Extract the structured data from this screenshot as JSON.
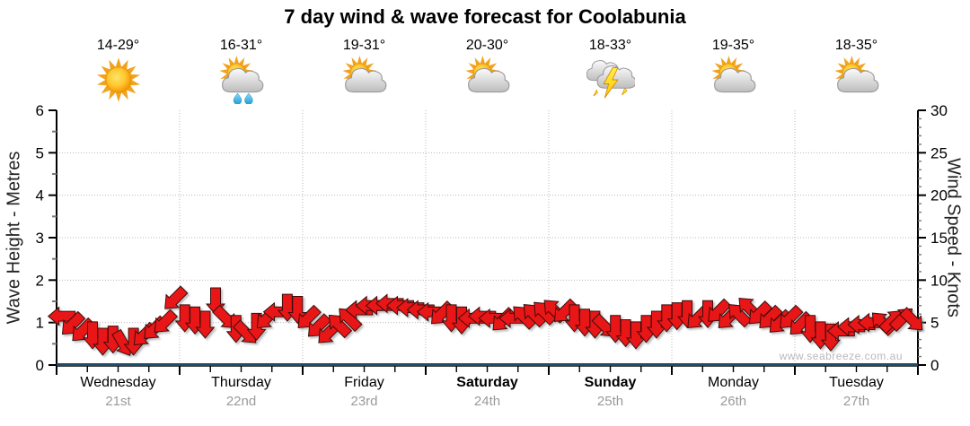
{
  "title": "7 day wind & wave forecast for Coolabunia",
  "watermark": "www.seabreeze.com.au",
  "axes": {
    "left": {
      "title": "Wave Height - Metres",
      "range": [
        0,
        6
      ],
      "major_ticks": [
        0,
        1,
        2,
        3,
        4,
        5,
        6
      ],
      "minor_step": 0.5
    },
    "right": {
      "title": "Wind Speed - Knots",
      "range": [
        0,
        30
      ],
      "major_ticks": [
        0,
        5,
        10,
        15,
        20,
        25,
        30
      ],
      "minor_step": 1
    },
    "bottom": {
      "minor_ticks_per_day": 4
    }
  },
  "colors": {
    "arrow_fill": "#e81414",
    "arrow_stroke": "#3c0d0d",
    "wave_line": "#1f4e6b",
    "grid": "#b8b8b8",
    "axis": "#000000",
    "minor_tick": "#777777"
  },
  "days": [
    {
      "name": "Wednesday",
      "date": "21st",
      "temp": "14-29°",
      "icon": "sunny",
      "weekend": false
    },
    {
      "name": "Thursday",
      "date": "22nd",
      "temp": "16-31°",
      "icon": "sun-cloud-rain",
      "weekend": false
    },
    {
      "name": "Friday",
      "date": "23rd",
      "temp": "19-31°",
      "icon": "sun-cloud",
      "weekend": false
    },
    {
      "name": "Saturday",
      "date": "24th",
      "temp": "20-30°",
      "icon": "sun-cloud",
      "weekend": true
    },
    {
      "name": "Sunday",
      "date": "25th",
      "temp": "18-33°",
      "icon": "thunderstorm",
      "weekend": true
    },
    {
      "name": "Monday",
      "date": "26th",
      "temp": "19-35°",
      "icon": "sun-cloud",
      "weekend": false
    },
    {
      "name": "Tuesday",
      "date": "27th",
      "temp": "18-35°",
      "icon": "sun-cloud",
      "weekend": false
    }
  ],
  "chart_data": {
    "type": "wind-arrows+line",
    "description": "Red arrows = wind speed (right axis, knots) and direction over 7 days, 12 points/day. Teal flat line = wave height 0 m (left axis).",
    "points_per_day": 12,
    "wind_knots": [
      5.75,
      4.75,
      4.0,
      3.5,
      2.75,
      3.0,
      2.5,
      2.75,
      3.5,
      4.25,
      5.0,
      7.75,
      5.5,
      5.25,
      4.75,
      7.5,
      5.5,
      4.25,
      3.75,
      4.5,
      5.5,
      6.25,
      6.75,
      6.5,
      5.5,
      4.5,
      3.75,
      4.75,
      5.5,
      6.5,
      7.0,
      7.0,
      7.25,
      7.0,
      6.75,
      6.5,
      6.25,
      6.0,
      5.5,
      5.25,
      5.5,
      5.75,
      5.5,
      5.25,
      5.5,
      5.75,
      6.0,
      6.25,
      6.5,
      6.25,
      5.5,
      5.0,
      4.75,
      4.5,
      4.25,
      3.75,
      3.5,
      4.25,
      4.75,
      5.5,
      5.75,
      6.0,
      5.5,
      6.0,
      6.25,
      5.5,
      6.0,
      6.75,
      6.0,
      5.5,
      5.0,
      5.5,
      4.75,
      4.25,
      3.5,
      3.25,
      4.0,
      4.5,
      4.75,
      5.0,
      5.0,
      5.25,
      5.5,
      5.25
    ],
    "wind_dir_deg_cw_from_east": [
      180,
      135,
      135,
      90,
      90,
      90,
      60,
      90,
      135,
      135,
      135,
      135,
      90,
      90,
      90,
      90,
      45,
      90,
      45,
      90,
      135,
      180,
      90,
      90,
      135,
      135,
      135,
      225,
      225,
      180,
      180,
      180,
      180,
      180,
      180,
      180,
      180,
      135,
      90,
      90,
      180,
      180,
      180,
      135,
      180,
      225,
      225,
      225,
      225,
      135,
      90,
      90,
      90,
      45,
      90,
      90,
      90,
      90,
      90,
      90,
      90,
      90,
      135,
      90,
      135,
      135,
      225,
      225,
      135,
      135,
      135,
      135,
      135,
      90,
      90,
      90,
      180,
      180,
      180,
      180,
      225,
      315,
      315,
      45
    ],
    "wave_height_m_constant": 0,
    "grid": {
      "horizontal_at_metres": [
        1,
        2,
        3,
        4,
        5
      ],
      "vertical_at_day_boundaries": true,
      "style": "dotted"
    }
  }
}
